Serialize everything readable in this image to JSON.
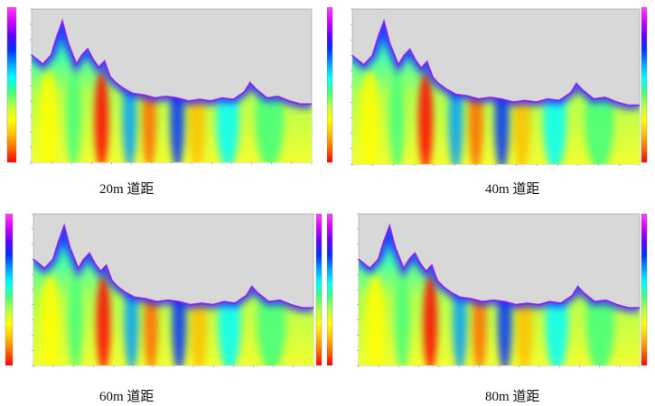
{
  "figure": {
    "panels": [
      {
        "caption": "20m 道距"
      },
      {
        "caption": "40m 道距"
      },
      {
        "caption": "60m 道距"
      },
      {
        "caption": "80m 道距"
      }
    ],
    "colors": {
      "background": "#d8d8d8",
      "colorbar_stops": [
        "#ff0000",
        "#ff6a00",
        "#ffc000",
        "#ffff00",
        "#b8ff40",
        "#40ff80",
        "#00ffff",
        "#00a0ff",
        "#0030ff",
        "#6000ff",
        "#d000ff",
        "#ff40ff"
      ]
    }
  }
}
